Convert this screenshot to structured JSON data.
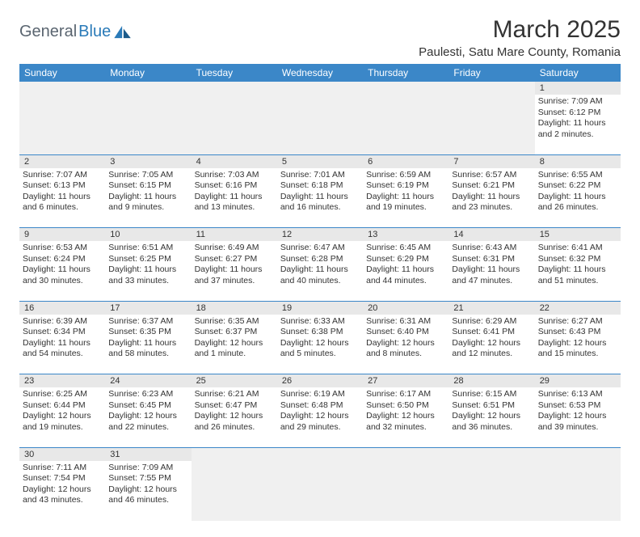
{
  "brand": {
    "part1": "General",
    "part2": "Blue"
  },
  "title": "March 2025",
  "location": "Paulesti, Satu Mare County, Romania",
  "colors": {
    "header_bg": "#3b87c8",
    "header_text": "#ffffff",
    "daynum_bg": "#e8e8e8",
    "empty_bg": "#f0f0f0",
    "border": "#3b87c8",
    "brand_gray": "#5a6570",
    "brand_blue": "#2a7ab8"
  },
  "day_names": [
    "Sunday",
    "Monday",
    "Tuesday",
    "Wednesday",
    "Thursday",
    "Friday",
    "Saturday"
  ],
  "weeks": [
    [
      null,
      null,
      null,
      null,
      null,
      null,
      {
        "n": "1",
        "sr": "Sunrise: 7:09 AM",
        "ss": "Sunset: 6:12 PM",
        "dl1": "Daylight: 11 hours",
        "dl2": "and 2 minutes."
      }
    ],
    [
      {
        "n": "2",
        "sr": "Sunrise: 7:07 AM",
        "ss": "Sunset: 6:13 PM",
        "dl1": "Daylight: 11 hours",
        "dl2": "and 6 minutes."
      },
      {
        "n": "3",
        "sr": "Sunrise: 7:05 AM",
        "ss": "Sunset: 6:15 PM",
        "dl1": "Daylight: 11 hours",
        "dl2": "and 9 minutes."
      },
      {
        "n": "4",
        "sr": "Sunrise: 7:03 AM",
        "ss": "Sunset: 6:16 PM",
        "dl1": "Daylight: 11 hours",
        "dl2": "and 13 minutes."
      },
      {
        "n": "5",
        "sr": "Sunrise: 7:01 AM",
        "ss": "Sunset: 6:18 PM",
        "dl1": "Daylight: 11 hours",
        "dl2": "and 16 minutes."
      },
      {
        "n": "6",
        "sr": "Sunrise: 6:59 AM",
        "ss": "Sunset: 6:19 PM",
        "dl1": "Daylight: 11 hours",
        "dl2": "and 19 minutes."
      },
      {
        "n": "7",
        "sr": "Sunrise: 6:57 AM",
        "ss": "Sunset: 6:21 PM",
        "dl1": "Daylight: 11 hours",
        "dl2": "and 23 minutes."
      },
      {
        "n": "8",
        "sr": "Sunrise: 6:55 AM",
        "ss": "Sunset: 6:22 PM",
        "dl1": "Daylight: 11 hours",
        "dl2": "and 26 minutes."
      }
    ],
    [
      {
        "n": "9",
        "sr": "Sunrise: 6:53 AM",
        "ss": "Sunset: 6:24 PM",
        "dl1": "Daylight: 11 hours",
        "dl2": "and 30 minutes."
      },
      {
        "n": "10",
        "sr": "Sunrise: 6:51 AM",
        "ss": "Sunset: 6:25 PM",
        "dl1": "Daylight: 11 hours",
        "dl2": "and 33 minutes."
      },
      {
        "n": "11",
        "sr": "Sunrise: 6:49 AM",
        "ss": "Sunset: 6:27 PM",
        "dl1": "Daylight: 11 hours",
        "dl2": "and 37 minutes."
      },
      {
        "n": "12",
        "sr": "Sunrise: 6:47 AM",
        "ss": "Sunset: 6:28 PM",
        "dl1": "Daylight: 11 hours",
        "dl2": "and 40 minutes."
      },
      {
        "n": "13",
        "sr": "Sunrise: 6:45 AM",
        "ss": "Sunset: 6:29 PM",
        "dl1": "Daylight: 11 hours",
        "dl2": "and 44 minutes."
      },
      {
        "n": "14",
        "sr": "Sunrise: 6:43 AM",
        "ss": "Sunset: 6:31 PM",
        "dl1": "Daylight: 11 hours",
        "dl2": "and 47 minutes."
      },
      {
        "n": "15",
        "sr": "Sunrise: 6:41 AM",
        "ss": "Sunset: 6:32 PM",
        "dl1": "Daylight: 11 hours",
        "dl2": "and 51 minutes."
      }
    ],
    [
      {
        "n": "16",
        "sr": "Sunrise: 6:39 AM",
        "ss": "Sunset: 6:34 PM",
        "dl1": "Daylight: 11 hours",
        "dl2": "and 54 minutes."
      },
      {
        "n": "17",
        "sr": "Sunrise: 6:37 AM",
        "ss": "Sunset: 6:35 PM",
        "dl1": "Daylight: 11 hours",
        "dl2": "and 58 minutes."
      },
      {
        "n": "18",
        "sr": "Sunrise: 6:35 AM",
        "ss": "Sunset: 6:37 PM",
        "dl1": "Daylight: 12 hours",
        "dl2": "and 1 minute."
      },
      {
        "n": "19",
        "sr": "Sunrise: 6:33 AM",
        "ss": "Sunset: 6:38 PM",
        "dl1": "Daylight: 12 hours",
        "dl2": "and 5 minutes."
      },
      {
        "n": "20",
        "sr": "Sunrise: 6:31 AM",
        "ss": "Sunset: 6:40 PM",
        "dl1": "Daylight: 12 hours",
        "dl2": "and 8 minutes."
      },
      {
        "n": "21",
        "sr": "Sunrise: 6:29 AM",
        "ss": "Sunset: 6:41 PM",
        "dl1": "Daylight: 12 hours",
        "dl2": "and 12 minutes."
      },
      {
        "n": "22",
        "sr": "Sunrise: 6:27 AM",
        "ss": "Sunset: 6:43 PM",
        "dl1": "Daylight: 12 hours",
        "dl2": "and 15 minutes."
      }
    ],
    [
      {
        "n": "23",
        "sr": "Sunrise: 6:25 AM",
        "ss": "Sunset: 6:44 PM",
        "dl1": "Daylight: 12 hours",
        "dl2": "and 19 minutes."
      },
      {
        "n": "24",
        "sr": "Sunrise: 6:23 AM",
        "ss": "Sunset: 6:45 PM",
        "dl1": "Daylight: 12 hours",
        "dl2": "and 22 minutes."
      },
      {
        "n": "25",
        "sr": "Sunrise: 6:21 AM",
        "ss": "Sunset: 6:47 PM",
        "dl1": "Daylight: 12 hours",
        "dl2": "and 26 minutes."
      },
      {
        "n": "26",
        "sr": "Sunrise: 6:19 AM",
        "ss": "Sunset: 6:48 PM",
        "dl1": "Daylight: 12 hours",
        "dl2": "and 29 minutes."
      },
      {
        "n": "27",
        "sr": "Sunrise: 6:17 AM",
        "ss": "Sunset: 6:50 PM",
        "dl1": "Daylight: 12 hours",
        "dl2": "and 32 minutes."
      },
      {
        "n": "28",
        "sr": "Sunrise: 6:15 AM",
        "ss": "Sunset: 6:51 PM",
        "dl1": "Daylight: 12 hours",
        "dl2": "and 36 minutes."
      },
      {
        "n": "29",
        "sr": "Sunrise: 6:13 AM",
        "ss": "Sunset: 6:53 PM",
        "dl1": "Daylight: 12 hours",
        "dl2": "and 39 minutes."
      }
    ],
    [
      {
        "n": "30",
        "sr": "Sunrise: 7:11 AM",
        "ss": "Sunset: 7:54 PM",
        "dl1": "Daylight: 12 hours",
        "dl2": "and 43 minutes."
      },
      {
        "n": "31",
        "sr": "Sunrise: 7:09 AM",
        "ss": "Sunset: 7:55 PM",
        "dl1": "Daylight: 12 hours",
        "dl2": "and 46 minutes."
      },
      null,
      null,
      null,
      null,
      null
    ]
  ]
}
